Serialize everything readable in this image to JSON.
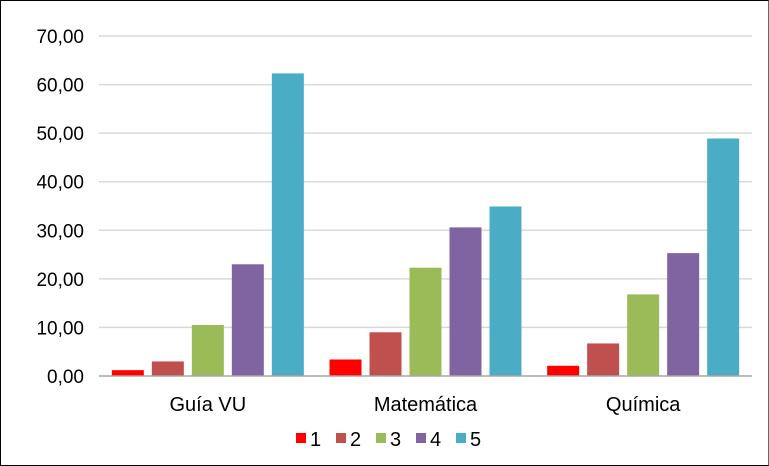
{
  "chart_data": {
    "type": "bar",
    "categories": [
      "Guía VU",
      "Matemática",
      "Química"
    ],
    "series": [
      {
        "name": "1",
        "color": "#ff0000",
        "values": [
          1.2,
          3.4,
          2.1
        ]
      },
      {
        "name": "2",
        "color": "#c0504d",
        "values": [
          3.0,
          9.0,
          6.7
        ]
      },
      {
        "name": "3",
        "color": "#9bbb59",
        "values": [
          10.5,
          22.3,
          16.8
        ]
      },
      {
        "name": "4",
        "color": "#8064a2",
        "values": [
          23.0,
          30.6,
          25.3
        ]
      },
      {
        "name": "5",
        "color": "#4bacc6",
        "values": [
          62.3,
          34.9,
          48.9
        ]
      }
    ],
    "ylim": [
      0,
      70
    ],
    "yticks": [
      "0,00",
      "10,00",
      "20,00",
      "30,00",
      "40,00",
      "50,00",
      "60,00",
      "70,00"
    ],
    "grid": true,
    "legend_position": "bottom"
  }
}
